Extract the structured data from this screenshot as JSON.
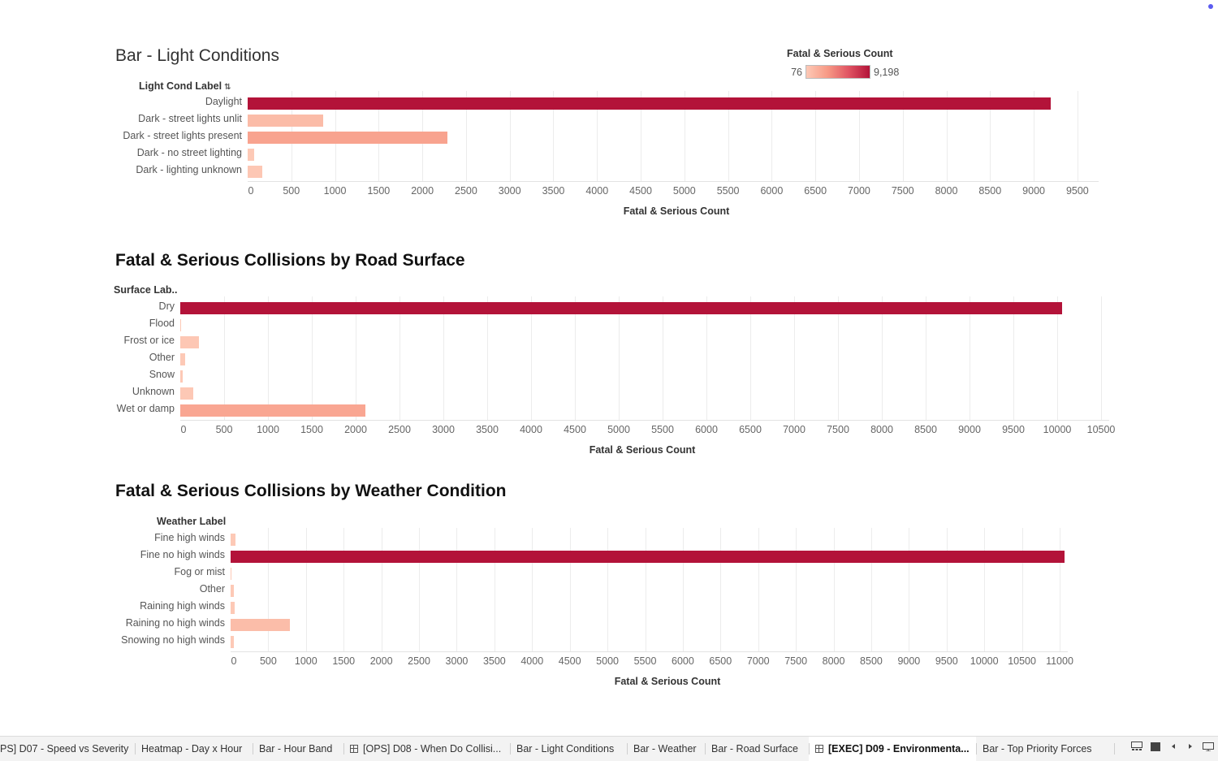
{
  "colors": {
    "low": "#fdc9b6",
    "high": "#b31339",
    "status_dot": "#5b5bf0"
  },
  "legend": {
    "title": "Fatal & Serious Count",
    "min_label": "76",
    "max_label": "9,198"
  },
  "chart_data": [
    {
      "id": "light",
      "type": "bar",
      "orientation": "horizontal",
      "title": "Bar - Light Conditions",
      "category_header": "Light Cond Label",
      "xlabel": "Fatal & Serious Count",
      "categories": [
        "Daylight",
        "Dark - street lights unlit",
        "Dark - street lights present",
        "Dark - no street lighting",
        "Dark - lighting unknown"
      ],
      "values": [
        9198,
        860,
        2290,
        76,
        170
      ],
      "xlim": [
        0,
        9650
      ],
      "ticks": [
        0,
        500,
        1000,
        1500,
        2000,
        2500,
        3000,
        3500,
        4000,
        4500,
        5000,
        5500,
        6000,
        6500,
        7000,
        7500,
        8000,
        8500,
        9000,
        9500
      ],
      "grid": true
    },
    {
      "id": "surface",
      "type": "bar",
      "orientation": "horizontal",
      "title": "Fatal & Serious Collisions by Road Surface",
      "category_header": "Surface Lab..",
      "xlabel": "Fatal & Serious Count",
      "categories": [
        "Dry",
        "Flood",
        "Frost or ice",
        "Other",
        "Snow",
        "Unknown",
        "Wet or damp"
      ],
      "values": [
        10060,
        5,
        210,
        55,
        30,
        150,
        2110
      ],
      "xlim": [
        0,
        10500
      ],
      "ticks": [
        0,
        500,
        1000,
        1500,
        2000,
        2500,
        3000,
        3500,
        4000,
        4500,
        5000,
        5500,
        6000,
        6500,
        7000,
        7500,
        8000,
        8500,
        9000,
        9500,
        10000,
        10500
      ],
      "grid": true
    },
    {
      "id": "weather",
      "type": "bar",
      "orientation": "horizontal",
      "title": "Fatal & Serious Collisions by Weather Condition",
      "category_header": "Weather Label",
      "xlabel": "Fatal & Serious Count",
      "categories": [
        "Fine high winds",
        "Fine no high winds",
        "Fog or mist",
        "Other",
        "Raining high winds",
        "Raining no high winds",
        "Snowing no high winds"
      ],
      "values": [
        70,
        11060,
        15,
        40,
        50,
        790,
        40
      ],
      "xlim": [
        0,
        11000
      ],
      "ticks": [
        0,
        500,
        1000,
        1500,
        2000,
        2500,
        3000,
        3500,
        4000,
        4500,
        5000,
        5500,
        6000,
        6500,
        7000,
        7500,
        8000,
        8500,
        9000,
        9500,
        10000,
        10500,
        11000
      ],
      "grid": true
    }
  ],
  "tabs": [
    {
      "label": "PS] D07 - Speed vs Severity",
      "icon": "",
      "active": false
    },
    {
      "label": "Heatmap - Day x Hour",
      "icon": "",
      "active": false
    },
    {
      "label": "Bar - Hour Band",
      "icon": "",
      "active": false
    },
    {
      "label": "[OPS] D08 - When Do Collisi...",
      "icon": "dashboard-grid-icon",
      "active": false
    },
    {
      "label": "Bar - Light Conditions",
      "icon": "",
      "active": false
    },
    {
      "label": "Bar - Weather",
      "icon": "",
      "active": false
    },
    {
      "label": "Bar - Road Surface",
      "icon": "",
      "active": false
    },
    {
      "label": "[EXEC] D09 - Environmenta...",
      "icon": "dashboard-grid-icon",
      "active": true
    },
    {
      "label": "Bar - Top Priority Forces",
      "icon": "",
      "active": false
    }
  ],
  "controls": [
    "show-filmstrip-icon",
    "show-tabs-icon",
    "previous-sheet-icon",
    "next-sheet-icon",
    "presentation-mode-icon"
  ]
}
